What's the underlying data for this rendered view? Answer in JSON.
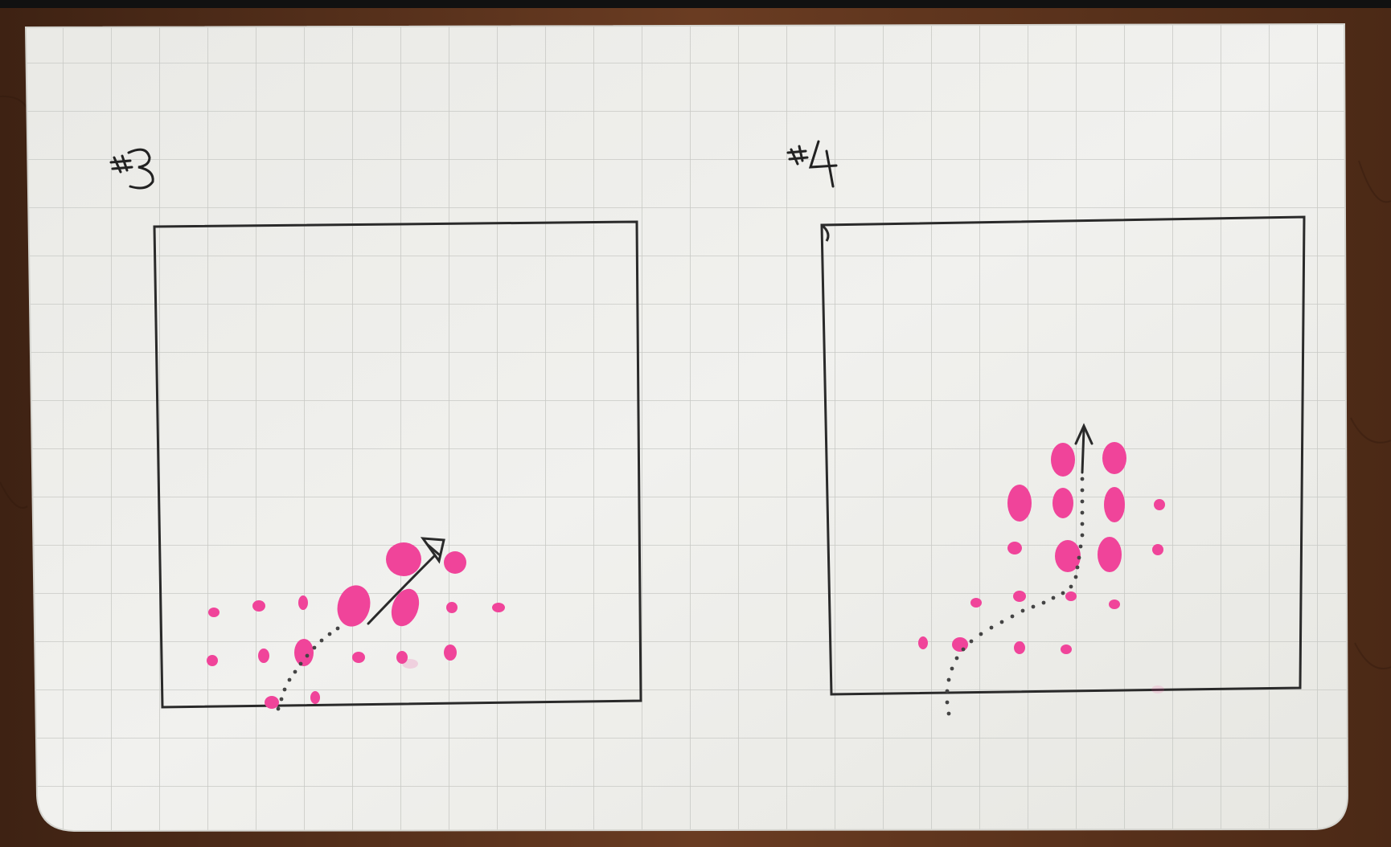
{
  "photo": {
    "subject": "graph-paper-sketch",
    "panels": [
      {
        "label": "#3",
        "arrow_direction": "up-right"
      },
      {
        "label": "#4",
        "arrow_direction": "up"
      }
    ],
    "colors": {
      "wood_table": "#5a321d",
      "paper": "#eeeeea",
      "grid_line": "#c9cac6",
      "ink": "#2b2b2b",
      "marker_pink": "#f0449a"
    }
  }
}
